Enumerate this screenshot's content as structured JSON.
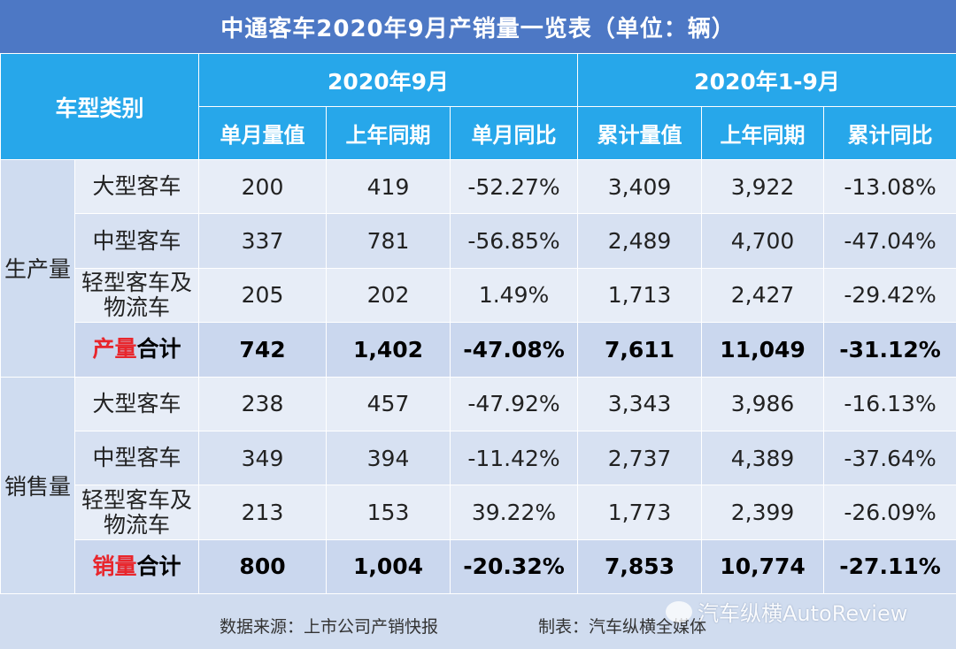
{
  "title": "中通客车2020年9月产销量一览表（单位：辆）",
  "header": {
    "category_label": "车型类别",
    "period_month": "2020年9月",
    "period_cum": "2020年1-9月",
    "columns": [
      "单月量值",
      "上年同期",
      "单月同比",
      "累计量值",
      "上年同期",
      "累计同比"
    ]
  },
  "groups": {
    "production": "生产量",
    "sales": "销售量"
  },
  "rows": [
    {
      "type": "大型客车",
      "v": [
        "200",
        "419",
        "-52.27%",
        "3,409",
        "3,922",
        "-13.08%"
      ]
    },
    {
      "type": "中型客车",
      "v": [
        "337",
        "781",
        "-56.85%",
        "2,489",
        "4,700",
        "-47.04%"
      ]
    },
    {
      "type": "轻型客车及物流车",
      "v": [
        "205",
        "202",
        "1.49%",
        "1,713",
        "2,427",
        "-29.42%"
      ]
    },
    {
      "type_red": "产量",
      "type_rest": "合计",
      "v": [
        "742",
        "1,402",
        "-47.08%",
        "7,611",
        "11,049",
        "-31.12%"
      ]
    },
    {
      "type": "大型客车",
      "v": [
        "238",
        "457",
        "-47.92%",
        "3,343",
        "3,986",
        "-16.13%"
      ]
    },
    {
      "type": "中型客车",
      "v": [
        "349",
        "394",
        "-11.42%",
        "2,737",
        "4,389",
        "-37.64%"
      ]
    },
    {
      "type": "轻型客车及物流车",
      "v": [
        "213",
        "153",
        "39.22%",
        "1,773",
        "2,399",
        "-26.09%"
      ]
    },
    {
      "type_red": "销量",
      "type_rest": "合计",
      "v": [
        "800",
        "1,004",
        "-20.32%",
        "7,853",
        "10,774",
        "-27.11%"
      ]
    }
  ],
  "footer": {
    "source": "数据来源：上市公司产销快报",
    "maker": "制表：汽车纵横全媒体"
  },
  "watermark": "汽车纵横AutoReview",
  "colors": {
    "header_bg": "#27a7ea",
    "title_bg": "#4d78c5",
    "negative": "#e8262c"
  }
}
